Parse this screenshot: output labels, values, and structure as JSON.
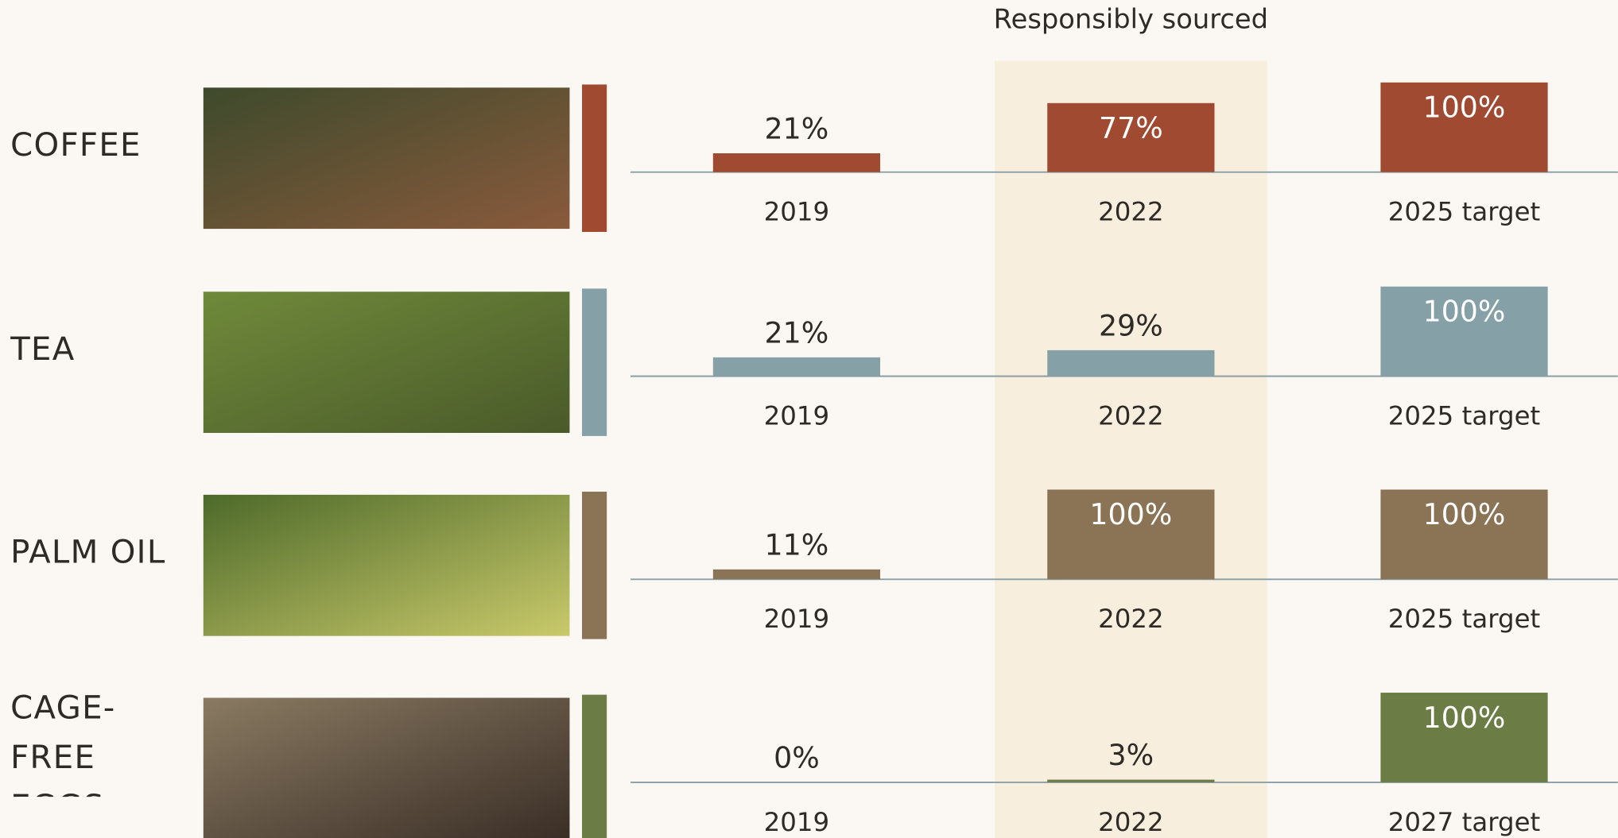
{
  "header": {
    "title": "Responsibly sourced"
  },
  "chart_data": [
    {
      "type": "bar",
      "title": "COFFEE",
      "categories": [
        "2019",
        "2022",
        "2025 target"
      ],
      "values": [
        21,
        77,
        100
      ],
      "value_labels": [
        "21%",
        "77%",
        "100%"
      ],
      "color": "#a04a32",
      "ylim": [
        0,
        100
      ]
    },
    {
      "type": "bar",
      "title": "TEA",
      "categories": [
        "2019",
        "2022",
        "2025 target"
      ],
      "values": [
        21,
        29,
        100
      ],
      "value_labels": [
        "21%",
        "29%",
        "100%"
      ],
      "color": "#85a0a6",
      "ylim": [
        0,
        100
      ]
    },
    {
      "type": "bar",
      "title": "PALM OIL",
      "categories": [
        "2019",
        "2022",
        "2025 target"
      ],
      "values": [
        11,
        100,
        100
      ],
      "value_labels": [
        "11%",
        "100%",
        "100%"
      ],
      "color": "#8b7355",
      "ylim": [
        0,
        100
      ]
    },
    {
      "type": "bar",
      "title": "CAGE-FREE EGGS",
      "categories": [
        "2019",
        "2022",
        "2027 target"
      ],
      "values": [
        0,
        3,
        100
      ],
      "value_labels": [
        "0%",
        "3%",
        "100%"
      ],
      "color": "#6b7d45",
      "ylim": [
        0,
        100
      ]
    }
  ]
}
